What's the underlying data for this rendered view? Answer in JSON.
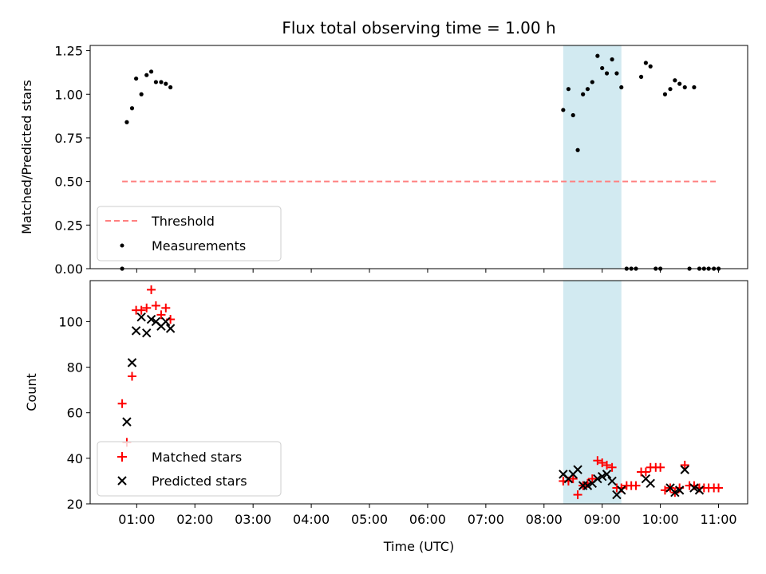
{
  "chart_data": [
    {
      "type": "scatter",
      "panel": "top",
      "title": "Flux total observing time = 1.00 h",
      "xlabel": "",
      "ylabel": "Matched/Predicted stars",
      "xlim": [
        0.2,
        11.5
      ],
      "ylim": [
        0,
        1.28
      ],
      "yticks": [
        0.0,
        0.25,
        0.5,
        0.75,
        1.0,
        1.25
      ],
      "ytick_labels": [
        "0.00",
        "0.25",
        "0.50",
        "0.75",
        "1.00",
        "1.25"
      ],
      "shaded_region": {
        "x": [
          8.33,
          9.33
        ],
        "color": "#add8e6"
      },
      "legend_position": "lower-left",
      "series": [
        {
          "name": "Threshold",
          "kind": "line",
          "style": "dashed",
          "color": "#ff8080",
          "x": [
            0.75,
            11.0
          ],
          "y": [
            0.5,
            0.5
          ]
        },
        {
          "name": "Measurements",
          "kind": "scatter",
          "marker": "dot",
          "color": "#000000",
          "x": [
            0.75,
            0.83,
            0.92,
            0.99,
            1.08,
            1.17,
            1.25,
            1.33,
            1.42,
            1.5,
            1.58,
            8.33,
            8.42,
            8.5,
            8.58,
            8.67,
            8.75,
            8.83,
            8.92,
            9.0,
            9.08,
            9.17,
            9.25,
            9.33,
            9.42,
            9.5,
            9.58,
            9.67,
            9.75,
            9.83,
            9.92,
            10.0,
            10.08,
            10.17,
            10.25,
            10.33,
            10.42,
            10.5,
            10.58,
            10.67,
            10.75,
            10.83,
            10.92,
            11.0
          ],
          "y": [
            0.0,
            0.84,
            0.92,
            1.09,
            1.0,
            1.11,
            1.13,
            1.07,
            1.07,
            1.06,
            1.04,
            0.91,
            1.03,
            0.88,
            0.68,
            1.0,
            1.03,
            1.07,
            1.22,
            1.15,
            1.12,
            1.2,
            1.12,
            1.04,
            0.0,
            0.0,
            0.0,
            1.1,
            1.18,
            1.16,
            0.0,
            0.0,
            1.0,
            1.03,
            1.08,
            1.06,
            1.04,
            0.0,
            1.04,
            0.0,
            0.0,
            0.0,
            0.0,
            0.0
          ]
        }
      ]
    },
    {
      "type": "scatter",
      "panel": "bottom",
      "title": "",
      "xlabel": "Time (UTC)",
      "ylabel": "Count",
      "xlim": [
        0.2,
        11.5
      ],
      "ylim": [
        20,
        118
      ],
      "yticks": [
        20,
        40,
        60,
        80,
        100
      ],
      "ytick_labels": [
        "20",
        "40",
        "60",
        "80",
        "100"
      ],
      "xticks": [
        1,
        2,
        3,
        4,
        5,
        6,
        7,
        8,
        9,
        10,
        11
      ],
      "xtick_labels": [
        "01:00",
        "02:00",
        "03:00",
        "04:00",
        "05:00",
        "06:00",
        "07:00",
        "08:00",
        "09:00",
        "10:00",
        "11:00"
      ],
      "shaded_region": {
        "x": [
          8.33,
          9.33
        ],
        "color": "#add8e6"
      },
      "legend_position": "lower-left",
      "series": [
        {
          "name": "Matched stars",
          "kind": "scatter",
          "marker": "plus",
          "color": "#ff0000",
          "x": [
            0.75,
            0.83,
            0.92,
            0.99,
            1.08,
            1.17,
            1.25,
            1.33,
            1.42,
            1.5,
            1.58,
            8.33,
            8.42,
            8.5,
            8.58,
            8.67,
            8.75,
            8.83,
            8.92,
            9.0,
            9.08,
            9.17,
            9.25,
            9.33,
            9.42,
            9.5,
            9.58,
            9.67,
            9.75,
            9.83,
            9.92,
            10.0,
            10.08,
            10.17,
            10.25,
            10.33,
            10.42,
            10.5,
            10.58,
            10.67,
            10.75,
            10.83,
            10.92,
            11.0
          ],
          "y": [
            64,
            47,
            76,
            105,
            105,
            106,
            114,
            107,
            103,
            106,
            101,
            30,
            30,
            31,
            24,
            28,
            29,
            31,
            39,
            38,
            37,
            36,
            27,
            27,
            28,
            28,
            28,
            34,
            34,
            36,
            36,
            36,
            26,
            27,
            25,
            27,
            37,
            28,
            28,
            27,
            27,
            27,
            27,
            27
          ]
        },
        {
          "name": "Predicted stars",
          "kind": "scatter",
          "marker": "x",
          "color": "#000000",
          "x": [
            0.83,
            0.92,
            0.99,
            1.08,
            1.17,
            1.25,
            1.33,
            1.42,
            1.5,
            1.58,
            8.33,
            8.42,
            8.5,
            8.58,
            8.67,
            8.75,
            8.83,
            8.92,
            9.0,
            9.08,
            9.17,
            9.25,
            9.33,
            9.75,
            9.83,
            10.17,
            10.25,
            10.33,
            10.42,
            10.58,
            10.67
          ],
          "y": [
            56,
            82,
            96,
            102,
            95,
            101,
            100,
            98,
            100,
            97,
            33,
            31,
            33,
            35,
            28,
            28,
            29,
            31,
            32,
            33,
            30,
            24,
            26,
            31,
            29,
            27,
            25,
            26,
            35,
            27,
            26
          ]
        }
      ]
    }
  ]
}
